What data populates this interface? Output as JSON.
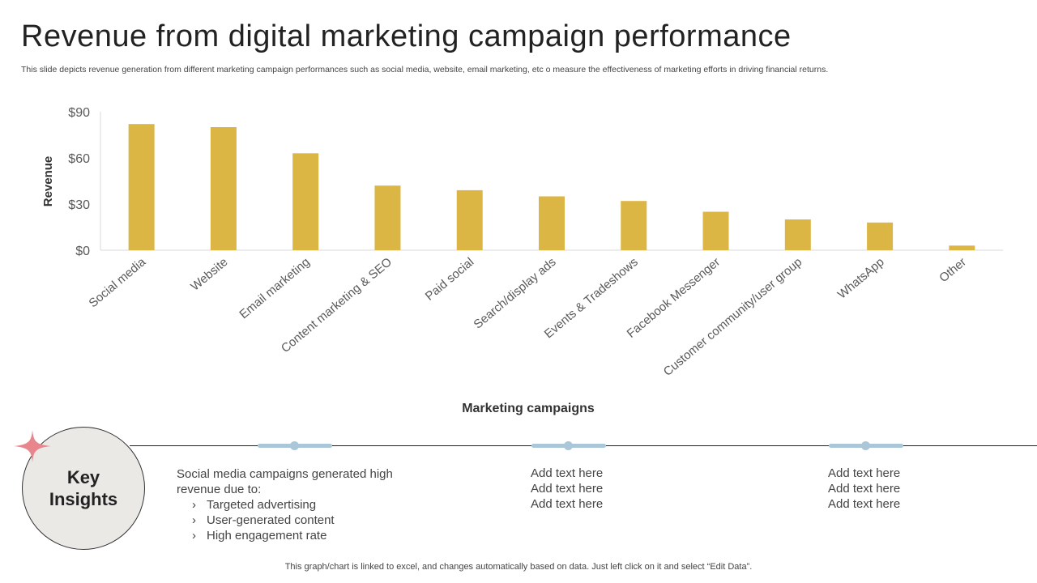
{
  "page": {
    "title": "Revenue from digital marketing campaign performance",
    "subtitle": "This slide depicts revenue generation from different marketing campaign performances such as social media, website, email marketing, etc o measure the effectiveness of marketing efforts in driving financial returns.",
    "footer_note": "This graph/chart is linked to excel,  and changes automatically based on data. Just left click on it and select “Edit Data”."
  },
  "chart_data": {
    "type": "bar",
    "categories": [
      "Social media",
      "Website",
      "Email marketing",
      "Content marketing & SEO",
      "Paid social",
      "Search/display ads",
      "Events & Tradeshows",
      "Facebook Messenger",
      "Customer community/user group",
      "WhatsApp",
      "Other"
    ],
    "values": [
      82,
      80,
      63,
      42,
      39,
      35,
      32,
      25,
      20,
      18,
      3
    ],
    "xlabel": "Marketing campaigns",
    "ylabel": "Revenue",
    "ylim": [
      0,
      90
    ],
    "yticks": [
      0,
      30,
      60,
      90
    ],
    "ytick_labels": [
      "$0",
      "$30",
      "$60",
      "$90"
    ],
    "grid": false,
    "bar_color": "#dcb645"
  },
  "insights": {
    "circle_label": "Key\nInsights",
    "accent_color": "#e8868e",
    "connector_color": "#a9c7d8",
    "block1": {
      "lines": [
        "Social media campaigns generated high",
        "revenue  due to:"
      ],
      "bullets": [
        "Targeted advertising",
        "User-generated content",
        "High engagement rate"
      ],
      "bullet_glyph": "›"
    },
    "block2": {
      "lines": [
        "Add text here",
        "Add text here",
        "Add text here"
      ]
    },
    "block3": {
      "lines": [
        "Add text here",
        "Add text here",
        "Add text here"
      ]
    }
  }
}
